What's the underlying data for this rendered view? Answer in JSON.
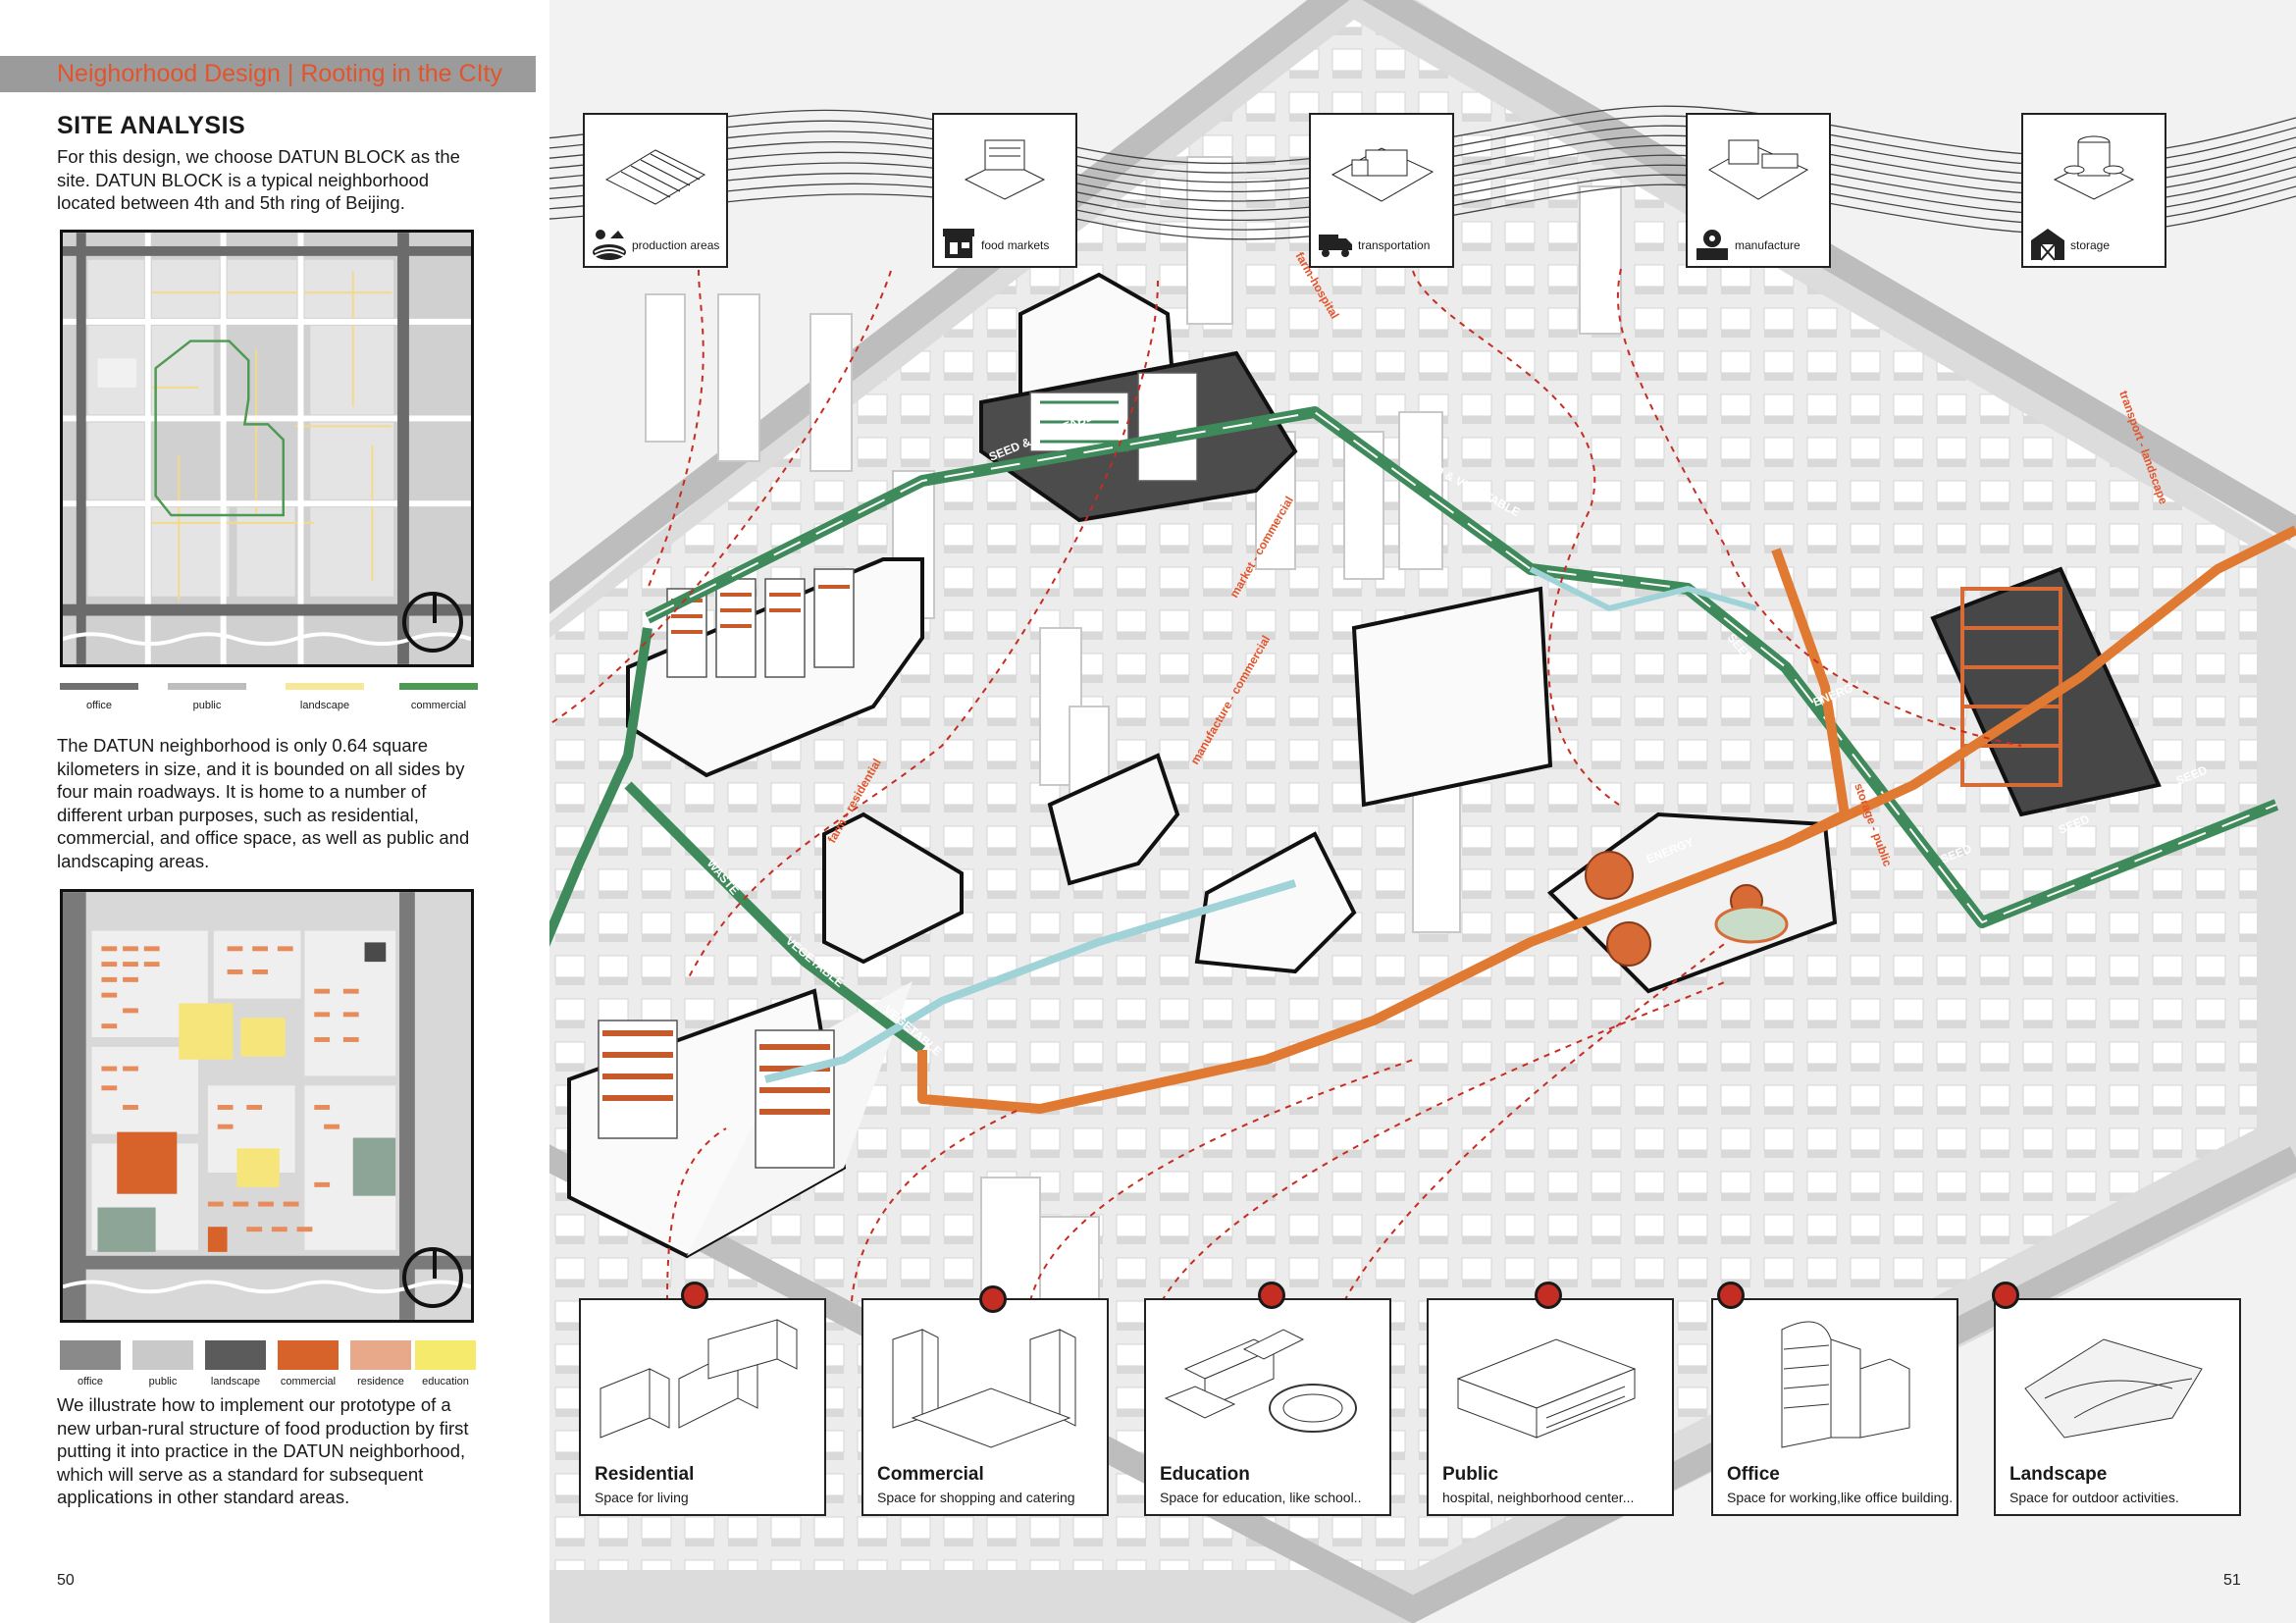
{
  "header": {
    "title": "Neighorhood Design | Rooting in the CIty"
  },
  "site_analysis": {
    "title": "SITE ANALYSIS",
    "intro": "For this design, we choose DATUN BLOCK as the site. DATUN BLOCK is a typical neighborhood located between 4th and 5th ring of Beijing.",
    "description": "The DATUN neighborhood is only 0.64 square kilometers in size, and it is bounded on all sides by four main roadways. It is home to a number of different urban purposes, such as residential, commercial, and office space, as well as public and landscaping areas.",
    "conclusion": "We illustrate how to implement our prototype of a new urban-rural structure of food production by first putting it into practice in the DATUN neighborhood, which will serve as a standard for subsequent applications in other standard areas."
  },
  "legend_roads": [
    {
      "label": "office",
      "color": "#707070"
    },
    {
      "label": "public",
      "color": "#bdbdbd"
    },
    {
      "label": "landscape",
      "color": "#f6e79a"
    },
    {
      "label": "commercial",
      "color": "#4e9a52"
    }
  ],
  "legend_landuse": [
    {
      "label": "office",
      "color": "#8a8a8a"
    },
    {
      "label": "public",
      "color": "#c9c9c9"
    },
    {
      "label": "landscape",
      "color": "#5b5b5b"
    },
    {
      "label": "commercial",
      "color": "#d7632b"
    },
    {
      "label": "residence",
      "color": "#e8a98a"
    },
    {
      "label": "education",
      "color": "#f6ea6c"
    }
  ],
  "food_chain": [
    {
      "label": "production areas",
      "icon": "sun-farm-icon"
    },
    {
      "label": "food markets",
      "icon": "market-stall-icon"
    },
    {
      "label": "transportation",
      "icon": "truck-icon"
    },
    {
      "label": "manufacture",
      "icon": "factory-gear-icon"
    },
    {
      "label": "storage",
      "icon": "barn-icon"
    }
  ],
  "route_labels": [
    "farm-hospital",
    "SEED & VEGETABLE",
    "SEED & VEGETABLE",
    "market - commercial",
    "manufacture - commercial",
    "farm - residential",
    "VEGETABLE",
    "VEGETABLE",
    "WASTE",
    "SEED",
    "ENERGY",
    "ENERGY",
    "SEED",
    "SEED",
    "SEED",
    "transport - landscape",
    "storage - public"
  ],
  "land_uses": [
    {
      "title": "Residential",
      "subtitle": "Space for living"
    },
    {
      "title": "Commercial",
      "subtitle": "Space for shopping and catering"
    },
    {
      "title": "Education",
      "subtitle": "Space for education, like school.."
    },
    {
      "title": "Public",
      "subtitle": "hospital, neighborhood center..."
    },
    {
      "title": "Office",
      "subtitle": "Space for working,like office building."
    },
    {
      "title": "Landscape",
      "subtitle": "Space for outdoor activities."
    }
  ],
  "pages": {
    "left": "50",
    "right": "51"
  },
  "colors": {
    "accent": "#e3542b",
    "route_green": "#3f8a5a",
    "route_orange": "#e07a32",
    "route_cyan": "#9fd3d8",
    "dash_red": "#c62d22"
  }
}
